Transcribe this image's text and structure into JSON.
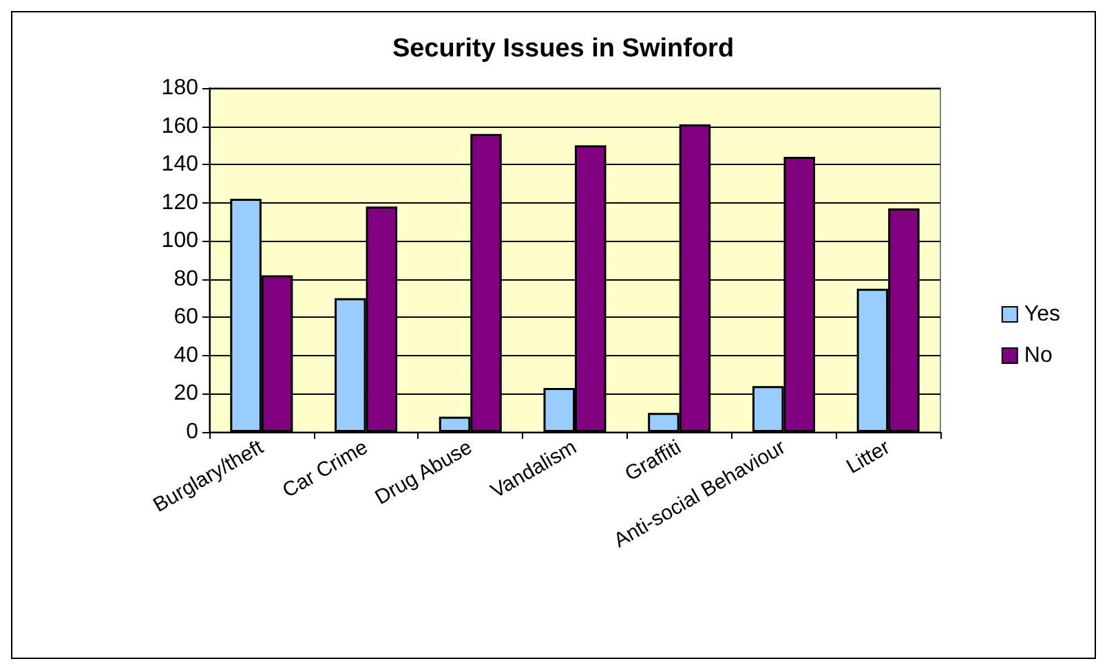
{
  "chart_data": {
    "type": "bar",
    "title": "Security Issues in Swinford",
    "categories": [
      "Burglary/theft",
      "Car Crime",
      "Drug Abuse",
      "Vandalism",
      "Graffiti",
      "Anti-social Behaviour",
      "Litter"
    ],
    "series": [
      {
        "name": "Yes",
        "color": "#99ccff",
        "values": [
          122,
          70,
          8,
          23,
          10,
          24,
          75
        ]
      },
      {
        "name": "No",
        "color": "#800080",
        "values": [
          82,
          118,
          156,
          150,
          161,
          144,
          117
        ]
      }
    ],
    "ylim": [
      0,
      180
    ],
    "yticks": [
      0,
      20,
      40,
      60,
      80,
      100,
      120,
      140,
      160,
      180
    ],
    "grid": "y",
    "legend": "right"
  }
}
